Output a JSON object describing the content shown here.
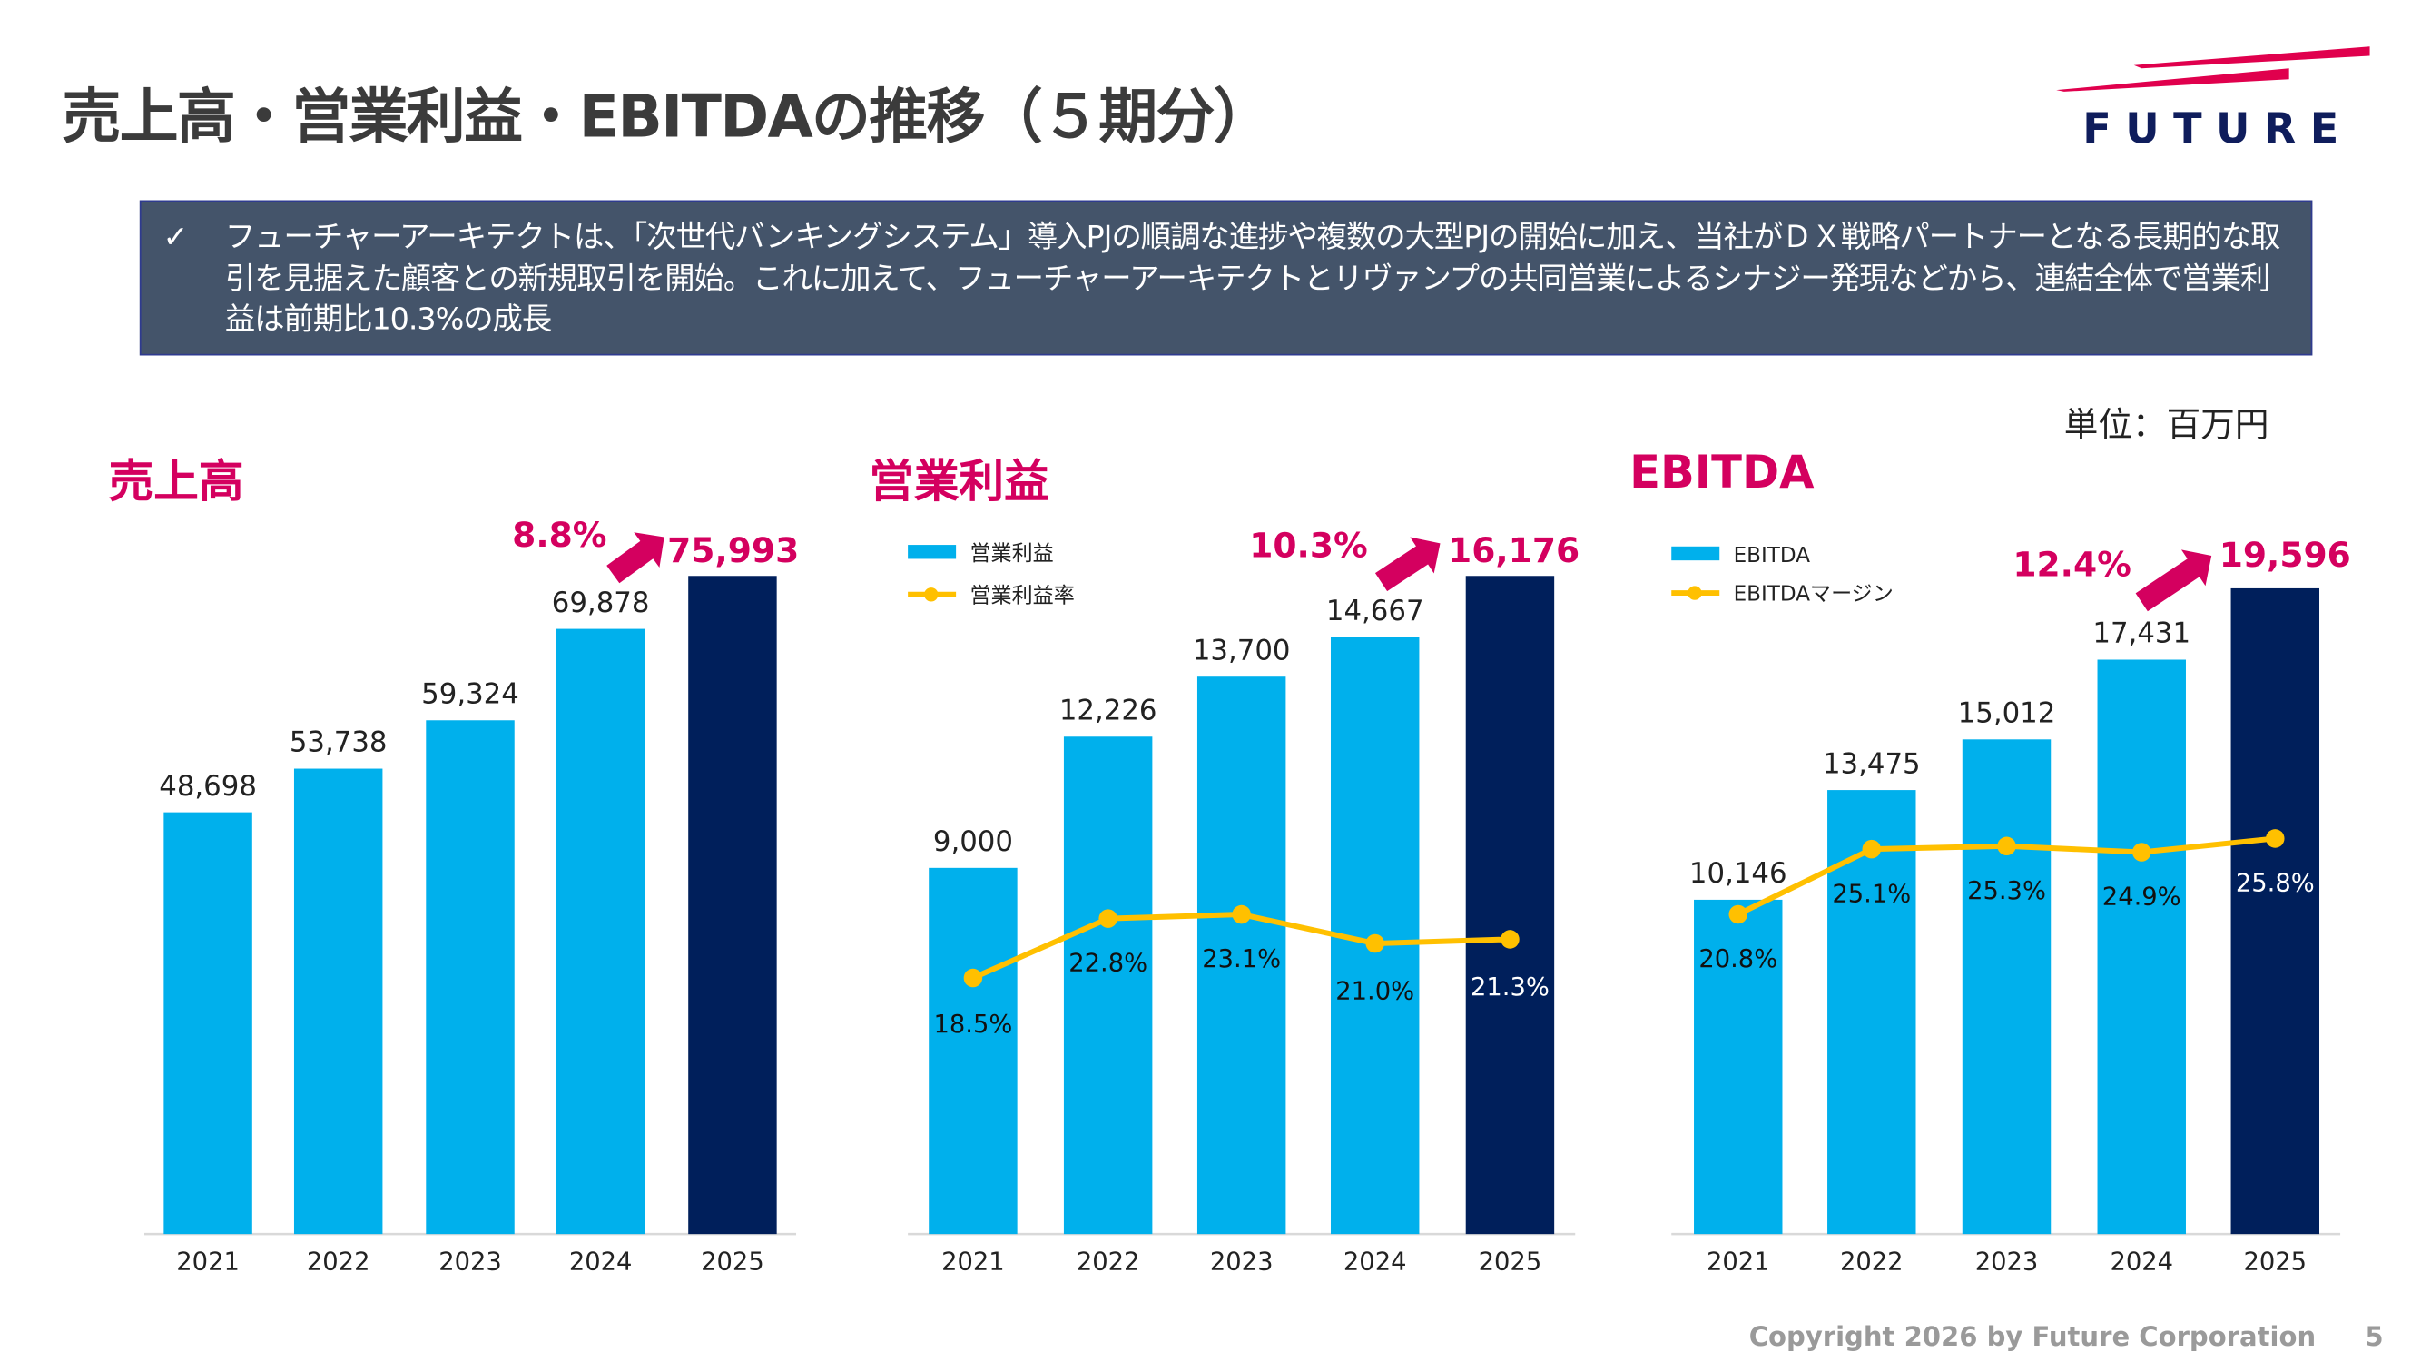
{
  "header": {
    "title": "売上高・営業利益・EBITDAの推移（５期分）",
    "logo_text": "FUTURE"
  },
  "summary": {
    "check": "✓",
    "text": "フューチャーアーキテクトは、「次世代バンキングシステム」導入PJの順調な進捗や複数の大型PJの開始に加え、当社がＤＸ戦略パートナーとなる長期的な取引を見据えた顧客との新規取引を開始。これに加えて、フューチャーアーキテクトとリヴァンプの共同営業によるシナジー発現などから、連結全体で営業利益は前期比10.3%の成長"
  },
  "unit": "単位：百万円",
  "footer": {
    "copyright": "Copyright 2026 by Future  Corporation",
    "page": "5"
  },
  "colors": {
    "bar": "#00b0ec",
    "bar_latest": "#001f5b",
    "line": "#ffc000",
    "accent": "#d4005f"
  },
  "chart_data": [
    {
      "type": "bar",
      "title": "売上高",
      "categories": [
        "2021",
        "2022",
        "2023",
        "2024",
        "2025"
      ],
      "series": [
        {
          "values": [
            48698,
            53738,
            59324,
            69878,
            75993
          ]
        }
      ],
      "value_labels": [
        "48,698",
        "53,738",
        "59,324",
        "69,878",
        "75,993"
      ],
      "growth_label": "8.8%"
    },
    {
      "type": "bar+line",
      "title": "営業利益",
      "categories": [
        "2021",
        "2022",
        "2023",
        "2024",
        "2025"
      ],
      "series": [
        {
          "name": "営業利益",
          "values": [
            9000,
            12226,
            13700,
            14667,
            16176
          ]
        },
        {
          "name": "営業利益率",
          "values": [
            18.5,
            22.8,
            23.1,
            21.0,
            21.3
          ]
        }
      ],
      "value_labels": [
        "9,000",
        "12,226",
        "13,700",
        "14,667",
        "16,176"
      ],
      "pct_labels": [
        "18.5%",
        "22.8%",
        "23.1%",
        "21.0%",
        "21.3%"
      ],
      "growth_label": "10.3%"
    },
    {
      "type": "bar+line",
      "title": "EBITDA",
      "categories": [
        "2021",
        "2022",
        "2023",
        "2024",
        "2025"
      ],
      "series": [
        {
          "name": "EBITDA",
          "values": [
            10146,
            13475,
            15012,
            17431,
            19596
          ]
        },
        {
          "name": "EBITDAマージン",
          "values": [
            20.8,
            25.1,
            25.3,
            24.9,
            25.8
          ]
        }
      ],
      "value_labels": [
        "10,146",
        "13,475",
        "15,012",
        "17,431",
        "19,596"
      ],
      "pct_labels": [
        "20.8%",
        "25.1%",
        "25.3%",
        "24.9%",
        "25.8%"
      ],
      "growth_label": "12.4%"
    }
  ]
}
